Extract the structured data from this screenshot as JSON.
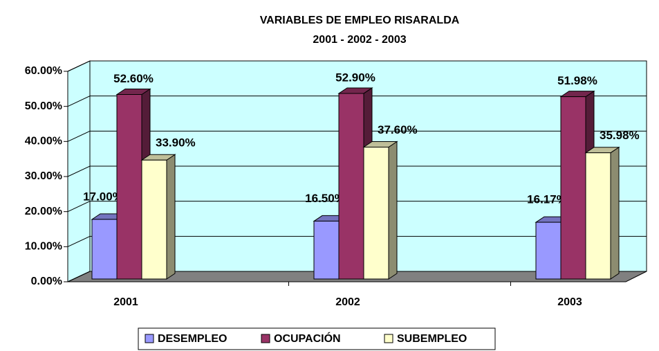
{
  "chart_data": {
    "type": "bar3d",
    "title": "VARIABLES DE EMPLEO RISARALDA",
    "subtitle": "2001 - 2002 - 2003",
    "categories": [
      "2001",
      "2002",
      "2003"
    ],
    "series": [
      {
        "name": "DESEMPLEO",
        "color": "#9999ff",
        "values": [
          17.0,
          16.5,
          16.17
        ],
        "value_labels": [
          "17.00%",
          "16.50%",
          "16.17%"
        ]
      },
      {
        "name": "OCUPACIÓN",
        "color": "#993366",
        "values": [
          52.6,
          52.9,
          51.98
        ],
        "value_labels": [
          "52.60%",
          "52.90%",
          "51.98%"
        ]
      },
      {
        "name": "SUBEMPLEO",
        "color": "#ffffcc",
        "values": [
          33.9,
          37.6,
          35.98
        ],
        "value_labels": [
          "33.90%",
          "37.60%",
          "35.98%"
        ]
      }
    ],
    "ylim": [
      0,
      60
    ],
    "yticks": [
      {
        "value": 0,
        "label": "0.00%"
      },
      {
        "value": 10,
        "label": "10.00%"
      },
      {
        "value": 20,
        "label": "20.00%"
      },
      {
        "value": 30,
        "label": "30.00%"
      },
      {
        "value": 40,
        "label": "40.00%"
      },
      {
        "value": 50,
        "label": "50.00%"
      },
      {
        "value": 60,
        "label": "60.00%"
      }
    ],
    "grid": true
  }
}
